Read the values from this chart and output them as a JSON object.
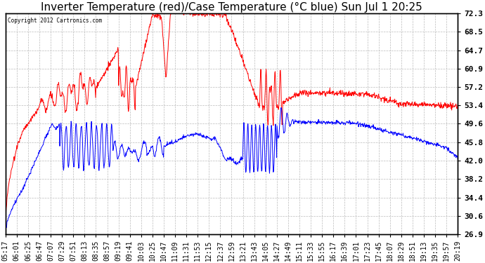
{
  "title": "Inverter Temperature (red)/Case Temperature (°C blue) Sun Jul 1 20:25",
  "copyright": "Copyright 2012 Cartronics.com",
  "ylabel_right_ticks": [
    26.9,
    30.6,
    34.4,
    38.2,
    42.0,
    45.8,
    49.6,
    53.4,
    57.2,
    60.9,
    64.7,
    68.5,
    72.3
  ],
  "ymin": 26.9,
  "ymax": 72.3,
  "bg_color": "#ffffff",
  "grid_color": "#bbbbbb",
  "red_color": "#ff0000",
  "blue_color": "#0000ff",
  "title_fontsize": 11,
  "tick_fontsize": 7,
  "x_labels": [
    "05:17",
    "06:01",
    "06:25",
    "06:47",
    "07:07",
    "07:29",
    "07:51",
    "08:13",
    "08:35",
    "08:57",
    "09:19",
    "09:41",
    "10:03",
    "10:25",
    "10:47",
    "11:09",
    "11:31",
    "11:53",
    "12:15",
    "12:37",
    "12:59",
    "13:21",
    "13:43",
    "14:05",
    "14:27",
    "14:49",
    "15:11",
    "15:33",
    "15:55",
    "16:17",
    "16:39",
    "17:01",
    "17:23",
    "17:45",
    "18:07",
    "18:29",
    "18:51",
    "19:13",
    "19:35",
    "19:57",
    "20:19"
  ]
}
